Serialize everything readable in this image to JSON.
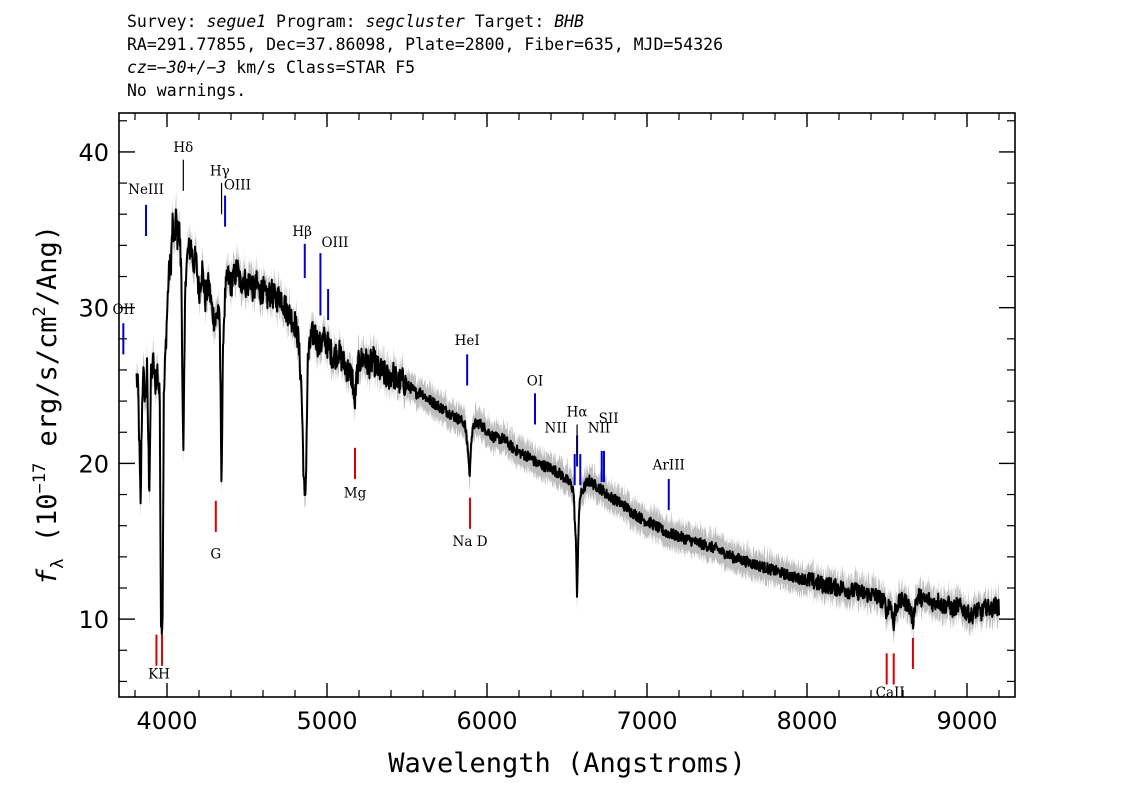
{
  "header": {
    "line1": {
      "survey_label": "Survey: ",
      "survey": "segue1",
      "program_label": " Program: ",
      "program": "segcluster",
      "target_label": " Target: ",
      "target": "BHB"
    },
    "line2": "RA=291.77855, Dec=37.86098, Plate=2800, Fiber=635, MJD=54326",
    "line3": {
      "cz_prefix": "cz",
      "cz_value": "=−30+/−3",
      "cz_rest": " km/s Class=STAR F5"
    },
    "line4": "No warnings."
  },
  "chart_data": {
    "type": "line",
    "title": "",
    "xlabel": "Wavelength (Angstroms)",
    "ylabel": "fλ (10⁻¹⁷ erg/s/cm²/Ang)",
    "ylabel_parts": {
      "f": "f",
      "sub": "λ",
      "open": " (10",
      "exp": "−17",
      "mid": " erg/s/cm",
      "sq": "2",
      "close": "/Ang)"
    },
    "xlim": [
      3700,
      9300
    ],
    "ylim": [
      5,
      42.5
    ],
    "x_ticks": [
      4000,
      5000,
      6000,
      7000,
      8000,
      9000
    ],
    "x_tick_labels": [
      "4000",
      "5000",
      "6000",
      "7000",
      "8000",
      "9000"
    ],
    "y_ticks": [
      10,
      20,
      30,
      40
    ],
    "y_tick_labels": [
      "10",
      "20",
      "30",
      "40"
    ],
    "grid": false,
    "series": [
      {
        "role": "flux",
        "color": "#000000",
        "points": [
          [
            3810,
            25.5
          ],
          [
            3820,
            24.6
          ],
          [
            3835,
            17.0
          ],
          [
            3842,
            22.5
          ],
          [
            3850,
            26.0
          ],
          [
            3865,
            24.0
          ],
          [
            3875,
            26.0
          ],
          [
            3889,
            18.2
          ],
          [
            3900,
            25.5
          ],
          [
            3915,
            26.5
          ],
          [
            3925,
            25.0
          ],
          [
            3940,
            26.0
          ],
          [
            3955,
            24.0
          ],
          [
            3962,
            10.2
          ],
          [
            3972,
            9.7
          ],
          [
            3980,
            24.0
          ],
          [
            3990,
            27.0
          ],
          [
            4010,
            32.0
          ],
          [
            4025,
            33.0
          ],
          [
            4035,
            35.5
          ],
          [
            4045,
            33.8
          ],
          [
            4055,
            36.0
          ],
          [
            4065,
            34.5
          ],
          [
            4075,
            35.5
          ],
          [
            4090,
            32.0
          ],
          [
            4102,
            19.8
          ],
          [
            4115,
            32.0
          ],
          [
            4130,
            33.5
          ],
          [
            4150,
            34.0
          ],
          [
            4165,
            32.8
          ],
          [
            4180,
            33.2
          ],
          [
            4200,
            31.0
          ],
          [
            4220,
            32.5
          ],
          [
            4240,
            30.5
          ],
          [
            4260,
            31.5
          ],
          [
            4280,
            30.0
          ],
          [
            4300,
            29.0
          ],
          [
            4320,
            30.0
          ],
          [
            4330,
            28.5
          ],
          [
            4341,
            18.8
          ],
          [
            4352,
            28.5
          ],
          [
            4365,
            31.0
          ],
          [
            4380,
            32.0
          ],
          [
            4400,
            31.5
          ],
          [
            4420,
            32.0
          ],
          [
            4440,
            32.5
          ],
          [
            4460,
            31.5
          ],
          [
            4480,
            32.0
          ],
          [
            4500,
            31.2
          ],
          [
            4520,
            32.0
          ],
          [
            4540,
            31.0
          ],
          [
            4560,
            31.5
          ],
          [
            4580,
            31.0
          ],
          [
            4600,
            31.2
          ],
          [
            4620,
            30.5
          ],
          [
            4650,
            31.0
          ],
          [
            4680,
            30.5
          ],
          [
            4710,
            30.8
          ],
          [
            4740,
            30.0
          ],
          [
            4770,
            29.5
          ],
          [
            4800,
            29.0
          ],
          [
            4820,
            28.0
          ],
          [
            4840,
            25.0
          ],
          [
            4855,
            19.0
          ],
          [
            4861,
            17.2
          ],
          [
            4868,
            19.0
          ],
          [
            4880,
            26.5
          ],
          [
            4900,
            28.0
          ],
          [
            4920,
            28.5
          ],
          [
            4950,
            27.5
          ],
          [
            4980,
            28.0
          ],
          [
            5010,
            27.5
          ],
          [
            5040,
            26.8
          ],
          [
            5070,
            27.2
          ],
          [
            5100,
            26.5
          ],
          [
            5130,
            26.0
          ],
          [
            5160,
            25.5
          ],
          [
            5172,
            23.6
          ],
          [
            5185,
            25.5
          ],
          [
            5200,
            26.5
          ],
          [
            5230,
            26.8
          ],
          [
            5260,
            26.3
          ],
          [
            5290,
            26.6
          ],
          [
            5320,
            26.0
          ],
          [
            5350,
            25.8
          ],
          [
            5380,
            25.5
          ],
          [
            5410,
            25.8
          ],
          [
            5440,
            25.2
          ],
          [
            5470,
            25.3
          ],
          [
            5500,
            25.0
          ],
          [
            5530,
            24.8
          ],
          [
            5560,
            24.5
          ],
          [
            5590,
            24.6
          ],
          [
            5620,
            24.2
          ],
          [
            5650,
            24.0
          ],
          [
            5680,
            23.8
          ],
          [
            5710,
            23.6
          ],
          [
            5740,
            23.4
          ],
          [
            5770,
            23.2
          ],
          [
            5800,
            23.0
          ],
          [
            5830,
            22.8
          ],
          [
            5860,
            22.6
          ],
          [
            5880,
            21.0
          ],
          [
            5893,
            19.0
          ],
          [
            5900,
            21.5
          ],
          [
            5920,
            22.5
          ],
          [
            5950,
            22.6
          ],
          [
            5980,
            22.3
          ],
          [
            6010,
            22.0
          ],
          [
            6040,
            21.7
          ],
          [
            6070,
            21.6
          ],
          [
            6100,
            21.6
          ],
          [
            6130,
            21.3
          ],
          [
            6160,
            21.0
          ],
          [
            6190,
            20.8
          ],
          [
            6220,
            20.6
          ],
          [
            6250,
            20.5
          ],
          [
            6280,
            20.3
          ],
          [
            6310,
            20.0
          ],
          [
            6340,
            19.9
          ],
          [
            6370,
            19.8
          ],
          [
            6400,
            19.7
          ],
          [
            6430,
            19.5
          ],
          [
            6460,
            19.3
          ],
          [
            6490,
            19.0
          ],
          [
            6520,
            18.7
          ],
          [
            6540,
            18.3
          ],
          [
            6555,
            15.0
          ],
          [
            6563,
            11.5
          ],
          [
            6570,
            15.0
          ],
          [
            6580,
            17.8
          ],
          [
            6600,
            18.3
          ],
          [
            6620,
            18.7
          ],
          [
            6640,
            18.9
          ],
          [
            6660,
            18.7
          ],
          [
            6690,
            18.5
          ],
          [
            6720,
            18.3
          ],
          [
            6750,
            18.0
          ],
          [
            6780,
            17.8
          ],
          [
            6810,
            17.6
          ],
          [
            6840,
            17.4
          ],
          [
            6870,
            17.2
          ],
          [
            6900,
            16.9
          ],
          [
            6930,
            16.7
          ],
          [
            6960,
            16.5
          ],
          [
            6990,
            16.3
          ],
          [
            7020,
            16.2
          ],
          [
            7050,
            16.0
          ],
          [
            7080,
            15.8
          ],
          [
            7110,
            15.6
          ],
          [
            7140,
            15.5
          ],
          [
            7170,
            15.4
          ],
          [
            7200,
            15.3
          ],
          [
            7230,
            15.2
          ],
          [
            7260,
            15.1
          ],
          [
            7290,
            15.0
          ],
          [
            7320,
            14.9
          ],
          [
            7350,
            14.8
          ],
          [
            7380,
            14.7
          ],
          [
            7410,
            14.6
          ],
          [
            7440,
            14.5
          ],
          [
            7470,
            14.3
          ],
          [
            7500,
            14.2
          ],
          [
            7530,
            14.0
          ],
          [
            7560,
            13.9
          ],
          [
            7590,
            13.8
          ],
          [
            7620,
            13.7
          ],
          [
            7650,
            13.6
          ],
          [
            7680,
            13.5
          ],
          [
            7710,
            13.4
          ],
          [
            7740,
            13.3
          ],
          [
            7770,
            13.2
          ],
          [
            7800,
            13.1
          ],
          [
            7830,
            13.0
          ],
          [
            7860,
            12.9
          ],
          [
            7890,
            12.8
          ],
          [
            7920,
            12.7
          ],
          [
            7950,
            12.6
          ],
          [
            7980,
            12.6
          ],
          [
            8010,
            12.5
          ],
          [
            8040,
            12.4
          ],
          [
            8070,
            12.3
          ],
          [
            8100,
            12.2
          ],
          [
            8130,
            12.2
          ],
          [
            8160,
            12.1
          ],
          [
            8190,
            12.0
          ],
          [
            8220,
            12.0
          ],
          [
            8250,
            11.9
          ],
          [
            8280,
            11.8
          ],
          [
            8310,
            11.8
          ],
          [
            8340,
            11.7
          ],
          [
            8370,
            11.6
          ],
          [
            8400,
            11.6
          ],
          [
            8430,
            11.5
          ],
          [
            8460,
            11.3
          ],
          [
            8490,
            11.0
          ],
          [
            8498,
            10.3
          ],
          [
            8510,
            11.0
          ],
          [
            8530,
            10.8
          ],
          [
            8542,
            9.3
          ],
          [
            8550,
            10.6
          ],
          [
            8570,
            11.0
          ],
          [
            8600,
            11.2
          ],
          [
            8630,
            11.0
          ],
          [
            8650,
            10.5
          ],
          [
            8662,
            9.8
          ],
          [
            8675,
            11.0
          ],
          [
            8700,
            11.5
          ],
          [
            8730,
            11.2
          ],
          [
            8760,
            11.3
          ],
          [
            8790,
            11.0
          ],
          [
            8820,
            11.2
          ],
          [
            8850,
            10.8
          ],
          [
            8880,
            11.0
          ],
          [
            8910,
            10.6
          ],
          [
            8940,
            10.9
          ],
          [
            8970,
            10.7
          ],
          [
            9000,
            10.4
          ],
          [
            9030,
            10.2
          ],
          [
            9060,
            10.6
          ],
          [
            9090,
            10.4
          ],
          [
            9120,
            10.8
          ],
          [
            9150,
            10.6
          ],
          [
            9180,
            10.9
          ],
          [
            9200,
            10.7
          ]
        ]
      }
    ],
    "error_band": {
      "color": "#bdbdbd",
      "half_width_data_units": 0.9
    },
    "emission_lines": {
      "color": "#0000cc",
      "lines": [
        {
          "label": "OII",
          "x": 3727,
          "y_low": 27.0,
          "y_high": 29.0,
          "label_x": 3727,
          "label_y": 29.6
        },
        {
          "label": "NeIII",
          "x": 3869,
          "y_low": 34.6,
          "y_high": 36.6,
          "label_x": 3869,
          "label_y": 37.3
        },
        {
          "label": "OIII",
          "x": 4363,
          "y_low": 35.2,
          "y_high": 37.2,
          "label_x": 4440,
          "label_y": 37.6
        },
        {
          "label": "Hβ",
          "x": 4861,
          "y_low": 31.9,
          "y_high": 34.1,
          "label_x": 4845,
          "label_y": 34.6
        },
        {
          "label": "OIII",
          "x": 4959,
          "y_low": 29.5,
          "y_high": 33.5,
          "label_x": 5050,
          "label_y": 33.9
        },
        {
          "label": "OIII",
          "x": 5007,
          "y_low": 29.2,
          "y_high": 31.2,
          "label_x": 5007,
          "label_y": 33.9,
          "show_label": false
        },
        {
          "label": "HeI",
          "x": 5876,
          "y_low": 25.0,
          "y_high": 27.0,
          "label_x": 5876,
          "label_y": 27.6
        },
        {
          "label": "OI",
          "x": 6300,
          "y_low": 22.5,
          "y_high": 24.5,
          "label_x": 6300,
          "label_y": 25.0
        },
        {
          "label": "NII",
          "x": 6548,
          "y_low": 18.6,
          "y_high": 20.6,
          "label_x": 6430,
          "label_y": 22.0
        },
        {
          "label": "Hα",
          "x": 6563,
          "y_low": 19.8,
          "y_high": 21.8,
          "label_x": 6563,
          "label_y": 23.0
        },
        {
          "label": "NII",
          "x": 6583,
          "y_low": 18.6,
          "y_high": 20.6,
          "label_x": 6583,
          "label_y": 20.6,
          "show_label": false
        },
        {
          "label": "NII",
          "x": 6717,
          "y_low": 18.8,
          "y_high": 20.8,
          "label_x": 6700,
          "label_y": 22.0
        },
        {
          "label": "SII",
          "x": 6731,
          "y_low": 18.8,
          "y_high": 20.8,
          "label_x": 6760,
          "label_y": 22.6
        },
        {
          "label": "ArIII",
          "x": 7136,
          "y_low": 17.0,
          "y_high": 19.0,
          "label_x": 7136,
          "label_y": 19.6
        }
      ]
    },
    "absorption_lines_top": {
      "color": "#000000",
      "lines": [
        {
          "label": "Hδ",
          "x": 4102,
          "y_low": 37.5,
          "y_high": 39.5,
          "label_x": 4102,
          "label_y": 40.0
        },
        {
          "label": "Hγ",
          "x": 4341,
          "y_low": 36.0,
          "y_high": 38.0,
          "label_x": 4330,
          "label_y": 38.5
        },
        {
          "label": "Hα",
          "x": 6563,
          "y_low": 20.5,
          "y_high": 22.5,
          "label_x": 6563,
          "label_y": 23.0,
          "show_label": false
        }
      ]
    },
    "absorption_lines": {
      "color": "#dd0000",
      "lines": [
        {
          "label": "KH",
          "x": 3934,
          "y_low": 7.0,
          "y_high": 9.0,
          "label_x": 3950,
          "label_y": 6.2
        },
        {
          "label": "KH",
          "x": 3969,
          "y_low": 7.0,
          "y_high": 9.0,
          "label_x": 3969,
          "label_y": 6.2,
          "show_label": false
        },
        {
          "label": "G",
          "x": 4305,
          "y_low": 15.6,
          "y_high": 17.6,
          "label_x": 4305,
          "label_y": 13.9
        },
        {
          "label": "Mg",
          "x": 5175,
          "y_low": 19.0,
          "y_high": 21.0,
          "label_x": 5175,
          "label_y": 17.8
        },
        {
          "label": "Na  D",
          "x": 5894,
          "y_low": 15.8,
          "y_high": 17.8,
          "label_x": 5894,
          "label_y": 14.7
        },
        {
          "label": "CaII",
          "x": 8498,
          "y_low": 5.8,
          "y_high": 7.8,
          "label_x": 8520,
          "label_y": 5.0
        },
        {
          "label": "CaII",
          "x": 8542,
          "y_low": 5.8,
          "y_high": 7.8,
          "label_x": 8542,
          "label_y": 5.0,
          "show_label": false
        },
        {
          "label": "CaII",
          "x": 8662,
          "y_low": 6.8,
          "y_high": 8.8,
          "label_x": 8662,
          "label_y": 5.0,
          "show_label": false
        }
      ]
    }
  }
}
